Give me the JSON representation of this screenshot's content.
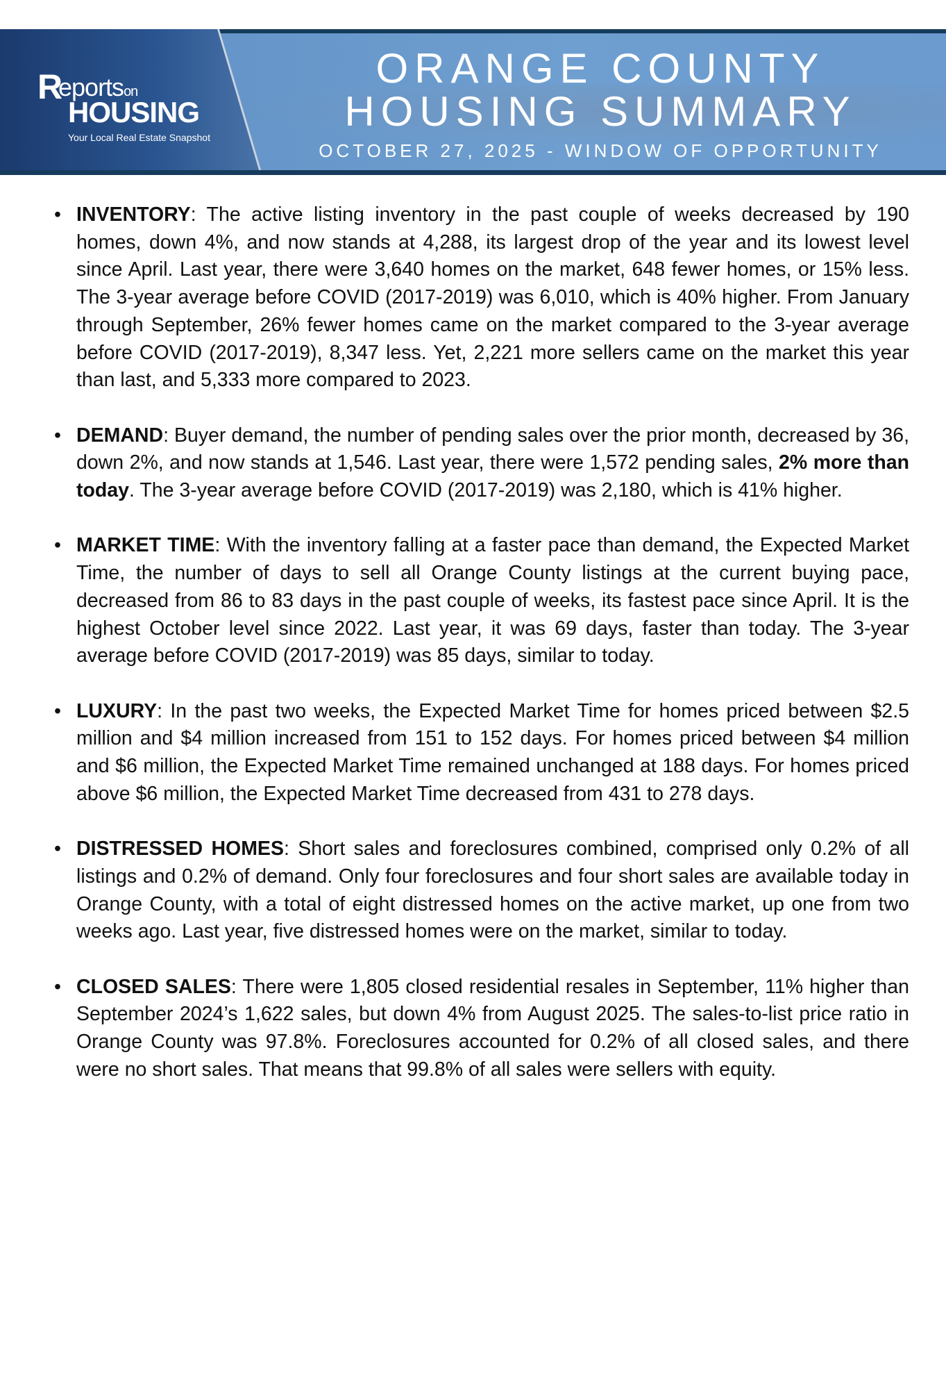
{
  "header": {
    "logo": {
      "r": "R",
      "line1": "eports",
      "on": "on",
      "line2": "HOUSING",
      "tagline": "Your Local Real Estate Snapshot"
    },
    "title_line1": "ORANGE COUNTY",
    "title_line2": "HOUSING SUMMARY",
    "subtitle": "OCTOBER 27, 2025 - WINDOW OF OPPORTUNITY"
  },
  "sections": [
    {
      "heading": "INVENTORY",
      "text": ": The active listing inventory in the past couple of weeks decreased by 190 homes, down 4%, and now stands at 4,288, its largest drop of the year and its lowest level since April. Last year, there were 3,640 homes on the market, 648 fewer homes, or 15% less. The 3-year average before COVID (2017-2019) was 6,010, which is 40% higher. From January through September, 26% fewer homes came on the market compared to the 3-year average before COVID (2017-2019), 8,347 less. Yet, 2,221 more sellers came on the market this year than last, and 5,333 more compared to 2023."
    },
    {
      "heading": "DEMAND",
      "text_a": ": Buyer demand, the number of pending sales over the prior month, decreased by 36, down 2%, and now stands at 1,546. Last year, there were 1,572 pending sales, ",
      "bold": "2% more than today",
      "text_b": ". The 3-year average before COVID (2017-2019) was 2,180, which is 41% higher."
    },
    {
      "heading": "MARKET TIME",
      "text": ": With the inventory falling at a faster pace than demand, the Expected Market Time, the number of days to sell all Orange County listings at the current buying pace, decreased from 86 to 83 days in the past couple of weeks, its fastest pace since April. It is the highest October level since 2022. Last year, it was 69 days, faster than today. The 3-year average before COVID (2017-2019) was 85 days, similar to today."
    },
    {
      "heading": "LUXURY",
      "text": ": In the past two weeks, the Expected Market Time for homes priced between $2.5 million and $4 million increased from 151 to 152 days. For homes priced between $4 million and $6 million, the Expected Market Time remained unchanged at 188 days. For homes priced above $6 million, the Expected Market Time decreased from 431 to 278 days."
    },
    {
      "heading": "DISTRESSED HOMES",
      "text": ": Short sales and foreclosures combined, comprised only 0.2% of all listings and 0.2% of demand. Only four foreclosures and four short sales are available today in Orange County, with a total of eight distressed homes on the active market, up one from two weeks ago. Last year, five distressed homes were on the market, similar to today."
    },
    {
      "heading": "CLOSED SALES",
      "text": ": There were 1,805 closed residential resales in September, 11% higher than September 2024’s 1,622 sales, but down 4% from August 2025. The sales-to-list price ratio in Orange County was 97.8%. Foreclosures accounted for 0.2% of all closed sales, and there were no short sales. That means that 99.8% of all sales were sellers with equity."
    }
  ],
  "bullet": "•"
}
